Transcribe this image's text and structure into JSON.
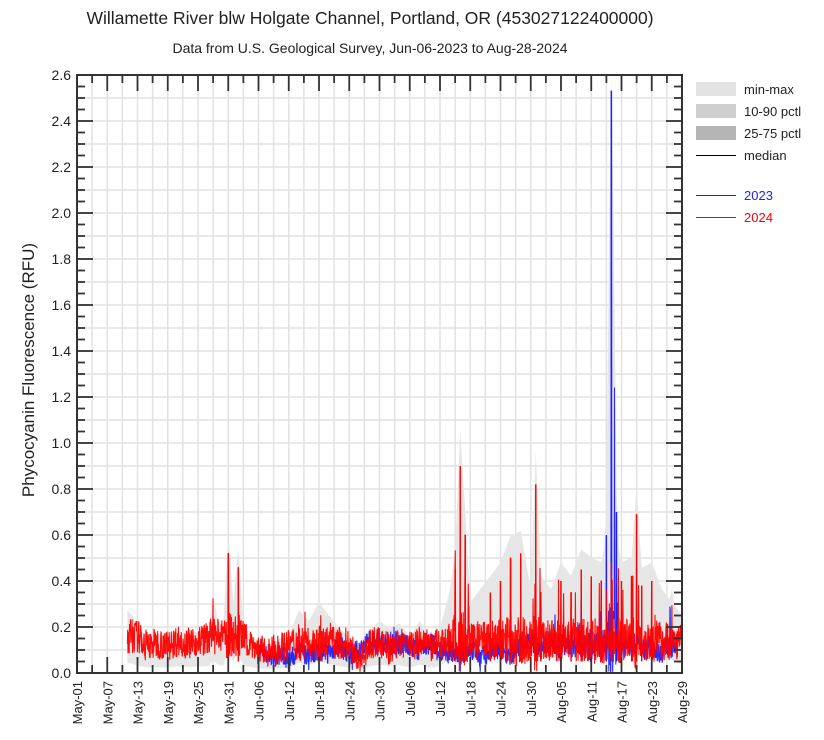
{
  "chart_data": {
    "type": "line",
    "title": "Willamette River blw Holgate Channel, Portland, OR (453027122400000)",
    "subtitle": "Data from U.S. Geological Survey, Jun-06-2023 to Aug-28-2024",
    "xlabel": "",
    "ylabel": "Phycocyanin Fluorescence (RFU)",
    "ylim": [
      0.0,
      2.6
    ],
    "yticks": [
      "0.0",
      "0.2",
      "0.4",
      "0.6",
      "0.8",
      "1.0",
      "1.2",
      "1.4",
      "1.6",
      "1.8",
      "2.0",
      "2.2",
      "2.4",
      "2.6"
    ],
    "xticks": [
      "May-01",
      "May-07",
      "May-13",
      "May-19",
      "May-25",
      "May-31",
      "Jun-06",
      "Jun-12",
      "Jun-18",
      "Jun-24",
      "Jun-30",
      "Jul-06",
      "Jul-12",
      "Jul-18",
      "Jul-24",
      "Jul-30",
      "Aug-05",
      "Aug-11",
      "Aug-17",
      "Aug-23",
      "Aug-29"
    ],
    "grid": true,
    "legend_position": "right",
    "legend": [
      {
        "label": "min-max",
        "kind": "band",
        "color": "#e3e3e3"
      },
      {
        "label": "10-90 pctl",
        "kind": "band",
        "color": "#cfcfcf"
      },
      {
        "label": "25-75 pctl",
        "kind": "band",
        "color": "#b5b5b5"
      },
      {
        "label": "median",
        "kind": "line",
        "color": "#000000"
      },
      {
        "label": "2023",
        "kind": "line",
        "color": "#2020ff"
      },
      {
        "label": "2024",
        "kind": "line",
        "color": "#ff0000"
      }
    ],
    "x_day_range": [
      0,
      120
    ],
    "series": [
      {
        "name": "2023",
        "color": "#2020ff",
        "x_days_since_may01": [
          36,
          38,
          40,
          42,
          44,
          46,
          48,
          50,
          52,
          54,
          56,
          58,
          60,
          62,
          64,
          66,
          68,
          70,
          72,
          74,
          76,
          78,
          80,
          82,
          84,
          86,
          88,
          90,
          92,
          94,
          96,
          98,
          100,
          102,
          104,
          105,
          106,
          107,
          108,
          110,
          112,
          114,
          116,
          118,
          119
        ],
        "values": [
          0.1,
          0.07,
          0.08,
          0.06,
          0.09,
          0.08,
          0.1,
          0.09,
          0.12,
          0.08,
          0.1,
          0.14,
          0.18,
          0.15,
          0.17,
          0.12,
          0.1,
          0.13,
          0.09,
          0.1,
          0.08,
          0.11,
          0.07,
          0.09,
          0.1,
          0.08,
          0.12,
          0.15,
          0.1,
          0.18,
          0.25,
          0.15,
          0.32,
          0.4,
          0.3,
          0.6,
          2.53,
          0.7,
          0.2,
          0.15,
          0.1,
          0.12,
          0.08,
          0.3,
          0.1
        ]
      },
      {
        "name": "2024",
        "color": "#ff0000",
        "x_days_since_may01": [
          10,
          11,
          12,
          13,
          14,
          16,
          18,
          20,
          22,
          24,
          26,
          27,
          28,
          29,
          30,
          31,
          32,
          33,
          34,
          35,
          36,
          38,
          40,
          42,
          44,
          46,
          48,
          50,
          52,
          54,
          56,
          58,
          60,
          62,
          64,
          66,
          68,
          70,
          72,
          74,
          75,
          76,
          77,
          78,
          80,
          82,
          84,
          86,
          88,
          90,
          91,
          92,
          94,
          96,
          98,
          100,
          102,
          104,
          106,
          108,
          110,
          111,
          112,
          114,
          116,
          118,
          120
        ],
        "values": [
          0.22,
          0.2,
          0.16,
          0.14,
          0.12,
          0.13,
          0.12,
          0.14,
          0.13,
          0.14,
          0.15,
          0.27,
          0.18,
          0.15,
          0.52,
          0.25,
          0.46,
          0.15,
          0.14,
          0.12,
          0.1,
          0.09,
          0.11,
          0.12,
          0.22,
          0.18,
          0.25,
          0.2,
          0.15,
          0.12,
          0.06,
          0.12,
          0.15,
          0.1,
          0.13,
          0.12,
          0.18,
          0.1,
          0.15,
          0.3,
          0.45,
          0.9,
          0.6,
          0.25,
          0.3,
          0.35,
          0.4,
          0.5,
          0.52,
          0.3,
          0.82,
          0.35,
          0.3,
          0.4,
          0.35,
          0.45,
          0.42,
          0.4,
          0.48,
          0.4,
          0.42,
          0.69,
          0.38,
          0.4,
          0.3,
          0.25,
          0.2
        ]
      }
    ]
  }
}
